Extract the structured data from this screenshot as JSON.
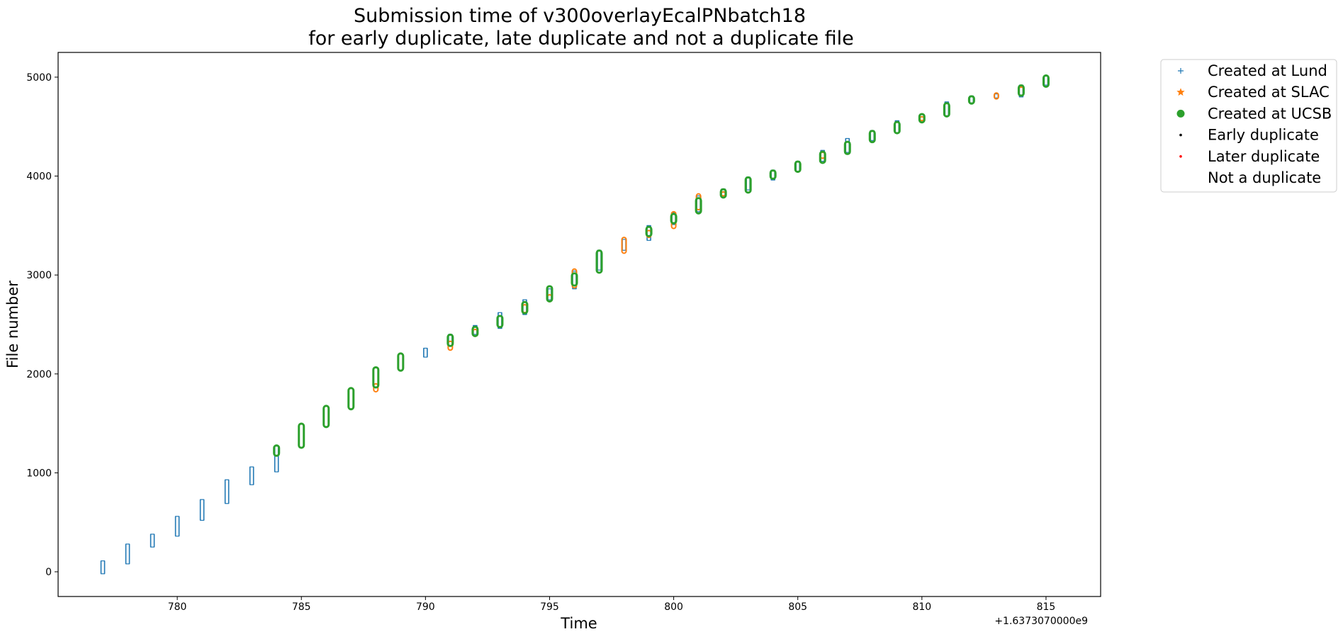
{
  "chart_data": {
    "type": "scatter",
    "title_line1": "Submission time of v300overlayEcalPNbatch18",
    "title_line2": "for early duplicate, late duplicate and not a duplicate file",
    "xlabel": "Time",
    "ylabel": "File number",
    "x_offset_label": "+1.6373070000e9",
    "x_offset": 1637307000,
    "xlim": [
      775.2,
      817.2
    ],
    "ylim": [
      -250,
      5250
    ],
    "x_ticks": [
      780,
      785,
      790,
      795,
      800,
      805,
      810,
      815
    ],
    "y_ticks": [
      0,
      1000,
      2000,
      3000,
      4000,
      5000
    ],
    "grid": false,
    "legend_position": "outside-top-right",
    "legend": [
      {
        "label": "Created at Lund",
        "marker": "plus",
        "color": "#1f77b4"
      },
      {
        "label": "Created at SLAC",
        "marker": "star",
        "color": "#ff7f0e"
      },
      {
        "label": "Created at UCSB",
        "marker": "circle",
        "color": "#2ca02c"
      },
      {
        "label": "Early duplicate",
        "marker": "dot",
        "color": "#000000"
      },
      {
        "label": "Later duplicate",
        "marker": "dot",
        "color": "#ff0000"
      },
      {
        "label": "Not a duplicate",
        "marker": "none",
        "color": "#ffffff"
      }
    ],
    "series": [
      {
        "name": "Created at Lund",
        "color": "#1f77b4",
        "marker": "plus",
        "ranges": [
          [
            777,
            -20,
            110
          ],
          [
            778,
            80,
            280
          ],
          [
            779,
            250,
            380
          ],
          [
            780,
            360,
            560
          ],
          [
            781,
            520,
            730
          ],
          [
            782,
            690,
            930
          ],
          [
            783,
            880,
            1060
          ],
          [
            784,
            1010,
            1270
          ],
          [
            790,
            2170,
            2260
          ],
          [
            791,
            2280,
            2400
          ],
          [
            792,
            2400,
            2490
          ],
          [
            793,
            2460,
            2620
          ],
          [
            794,
            2600,
            2750
          ],
          [
            795,
            2750,
            2860
          ],
          [
            796,
            2860,
            3040
          ],
          [
            797,
            3050,
            3250
          ],
          [
            798,
            3250,
            3360
          ],
          [
            799,
            3350,
            3500
          ],
          [
            800,
            3510,
            3630
          ],
          [
            801,
            3640,
            3800
          ],
          [
            802,
            3800,
            3870
          ],
          [
            803,
            3860,
            3990
          ],
          [
            804,
            3960,
            4060
          ],
          [
            805,
            4050,
            4150
          ],
          [
            806,
            4150,
            4260
          ],
          [
            807,
            4240,
            4380
          ],
          [
            808,
            4360,
            4460
          ],
          [
            809,
            4440,
            4560
          ],
          [
            810,
            4560,
            4620
          ],
          [
            811,
            4610,
            4750
          ],
          [
            812,
            4740,
            4810
          ],
          [
            813,
            4790,
            4830
          ],
          [
            814,
            4800,
            4920
          ],
          [
            815,
            4920,
            5010
          ]
        ]
      },
      {
        "name": "Created at SLAC",
        "color": "#ff7f0e",
        "marker": "star",
        "ranges": [
          [
            788,
            1820,
            1900
          ],
          [
            791,
            2240,
            2330
          ],
          [
            792,
            2380,
            2450
          ],
          [
            794,
            2620,
            2700
          ],
          [
            795,
            2730,
            2800
          ],
          [
            796,
            2870,
            3060
          ],
          [
            798,
            3220,
            3380
          ],
          [
            799,
            3380,
            3450
          ],
          [
            800,
            3470,
            3640
          ],
          [
            801,
            3660,
            3820
          ],
          [
            802,
            3800,
            3840
          ],
          [
            806,
            4180,
            4240
          ],
          [
            810,
            4560,
            4600
          ],
          [
            813,
            4780,
            4840
          ],
          [
            814,
            4810,
            4900
          ]
        ]
      },
      {
        "name": "Created at UCSB",
        "color": "#2ca02c",
        "marker": "circle",
        "ranges": [
          [
            784,
            1180,
            1270
          ],
          [
            785,
            1260,
            1490
          ],
          [
            786,
            1470,
            1670
          ],
          [
            787,
            1650,
            1850
          ],
          [
            788,
            1870,
            2060
          ],
          [
            789,
            2040,
            2200
          ],
          [
            791,
            2290,
            2390
          ],
          [
            792,
            2390,
            2470
          ],
          [
            793,
            2480,
            2580
          ],
          [
            794,
            2620,
            2720
          ],
          [
            795,
            2740,
            2880
          ],
          [
            796,
            2900,
            3010
          ],
          [
            797,
            3030,
            3240
          ],
          [
            799,
            3400,
            3480
          ],
          [
            800,
            3530,
            3610
          ],
          [
            801,
            3630,
            3770
          ],
          [
            802,
            3790,
            3860
          ],
          [
            803,
            3840,
            3980
          ],
          [
            804,
            3980,
            4050
          ],
          [
            805,
            4050,
            4140
          ],
          [
            806,
            4140,
            4240
          ],
          [
            807,
            4230,
            4340
          ],
          [
            808,
            4350,
            4450
          ],
          [
            809,
            4440,
            4540
          ],
          [
            810,
            4550,
            4620
          ],
          [
            811,
            4610,
            4730
          ],
          [
            812,
            4740,
            4800
          ],
          [
            814,
            4820,
            4910
          ],
          [
            815,
            4910,
            5010
          ]
        ]
      }
    ]
  }
}
